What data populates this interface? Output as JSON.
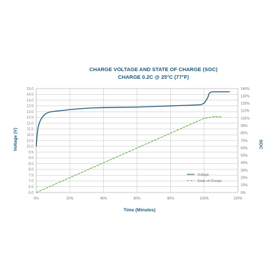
{
  "chart_data": {
    "type": "line",
    "title": "CHARGE VOLTAGE AND STATE OF CHARGE (SOC)",
    "subtitle": "CHARGE 0.2C @ 25°C (77°F)",
    "xlabel": "Time (Minutes)",
    "ylabel": "Voltage (V)",
    "y2label": "SOC",
    "xlim": [
      0,
      120
    ],
    "ylim": [
      6.0,
      15.0
    ],
    "y2lim": [
      0,
      140
    ],
    "x_ticks": [
      "0%",
      "20%",
      "40%",
      "60%",
      "80%",
      "100%",
      "120%"
    ],
    "y_ticks": [
      "6.0",
      "6.5",
      "7.0",
      "7.5",
      "8.0",
      "8.5",
      "9.0",
      "9.5",
      "10.0",
      "10.5",
      "11.0",
      "11.5",
      "12.0",
      "12.5",
      "13.0",
      "13.5",
      "14.0",
      "14.5",
      "15.0"
    ],
    "y2_ticks": [
      "0%",
      "10%",
      "20%",
      "30%",
      "40%",
      "50%",
      "60%",
      "70%",
      "80%",
      "90%",
      "100%",
      "110%",
      "120%",
      "130%",
      "140%"
    ],
    "grid": true,
    "legend": "center-right",
    "series": [
      {
        "name": "Voltage",
        "axis": "left",
        "color": "#1e5a78",
        "x": [
          0,
          0.5,
          1,
          2,
          3,
          4,
          5,
          6,
          7,
          8,
          9,
          10,
          12,
          15,
          20,
          25,
          30,
          35,
          40,
          50,
          60,
          70,
          80,
          90,
          98,
          100,
          101,
          102,
          103,
          104,
          105,
          110,
          115
        ],
        "y": [
          10.0,
          11.0,
          11.6,
          12.1,
          12.4,
          12.6,
          12.75,
          12.85,
          12.92,
          12.97,
          13.0,
          13.02,
          13.05,
          13.1,
          13.18,
          13.25,
          13.3,
          13.33,
          13.35,
          13.38,
          13.4,
          13.45,
          13.5,
          13.55,
          13.6,
          13.75,
          13.95,
          14.2,
          14.6,
          14.7,
          14.72,
          14.72,
          14.72
        ]
      },
      {
        "name": "State of Charge",
        "axis": "right",
        "color": "#5aab3c",
        "dashed": true,
        "x": [
          0,
          100,
          103,
          105,
          110
        ],
        "y": [
          0,
          100,
          101,
          102,
          102
        ]
      }
    ]
  }
}
